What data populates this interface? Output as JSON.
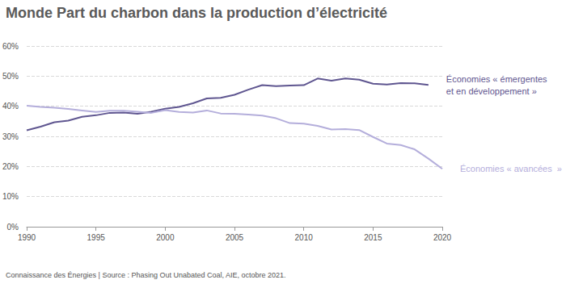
{
  "chart_data": {
    "type": "line",
    "title": "Monde",
    "subtitle": "Part du charbon dans la production d’électricité",
    "footer": "Connaissance des Énergies | Source : Phasing Out Unabated Coal, AIE, octobre 2021.",
    "x": [
      1990,
      1991,
      1992,
      1993,
      1994,
      1995,
      1996,
      1997,
      1998,
      1999,
      2000,
      2001,
      2002,
      2003,
      2004,
      2005,
      2006,
      2007,
      2008,
      2009,
      2010,
      2011,
      2012,
      2013,
      2014,
      2015,
      2016,
      2017,
      2018,
      2019,
      2020
    ],
    "series": [
      {
        "name": "Économies « émergentes\net en développement »",
        "color": "#5f5690",
        "values": [
          32,
          33.2,
          34.7,
          35.2,
          36.5,
          37,
          37.8,
          37.9,
          37.5,
          38.2,
          39.2,
          39.8,
          41,
          42.6,
          42.8,
          43.8,
          45.5,
          47,
          46.7,
          46.9,
          47,
          49.2,
          48.5,
          49.2,
          48.8,
          47.5,
          47.2,
          47.7,
          47.6,
          47.1,
          null
        ]
      },
      {
        "name": "Économies « avancées  »",
        "color": "#b4aedb",
        "values": [
          40.2,
          39.8,
          39.5,
          39.1,
          38.6,
          38.1,
          38.5,
          38.5,
          38.2,
          37.8,
          38.7,
          38.1,
          37.9,
          38.6,
          37.6,
          37.5,
          37.2,
          36.9,
          36,
          34.4,
          34.2,
          33.5,
          32.3,
          32.4,
          32.1,
          29.8,
          27.6,
          27.1,
          25.7,
          22.6,
          19.2
        ]
      }
    ],
    "xlim": [
      1990,
      2020
    ],
    "xticks": [
      1990,
      1995,
      2000,
      2005,
      2010,
      2015,
      2020
    ],
    "ylim": [
      0,
      60
    ],
    "yticks": [
      {
        "value": 0,
        "label": "0%"
      },
      {
        "value": 10,
        "label": "10%"
      },
      {
        "value": 20,
        "label": "20%"
      },
      {
        "value": 30,
        "label": "30%"
      },
      {
        "value": 40,
        "label": "40%"
      },
      {
        "value": 50,
        "label": "50%"
      },
      {
        "value": 60,
        "label": "60%"
      }
    ],
    "grid": true
  }
}
